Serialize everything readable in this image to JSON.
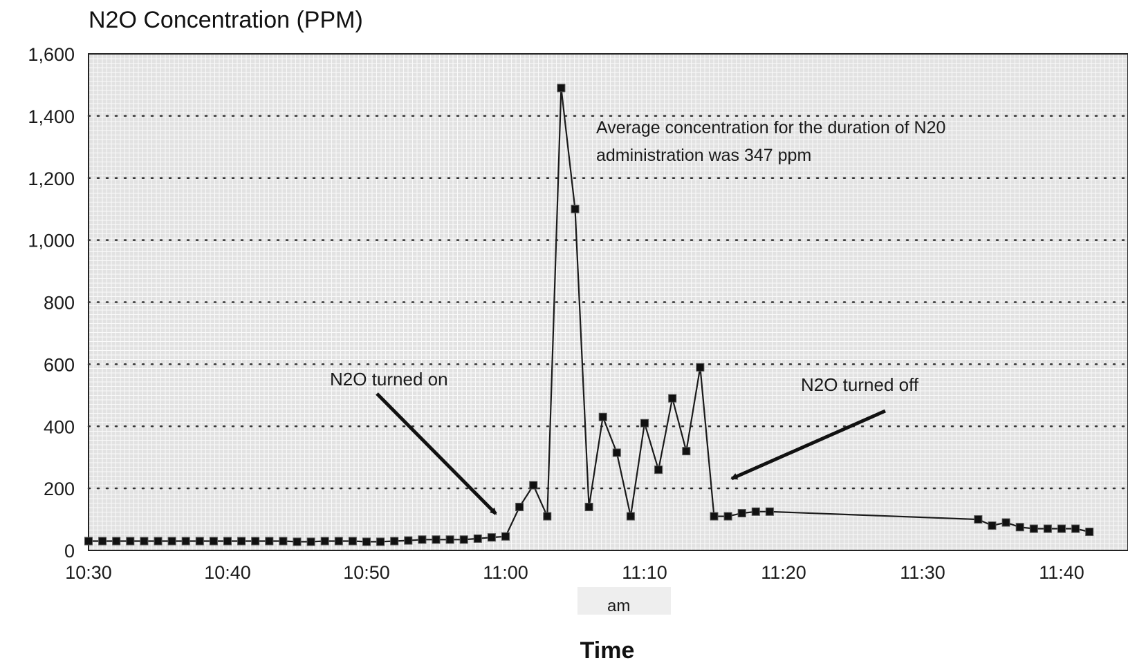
{
  "chart_data": {
    "type": "line",
    "title": "N2O Concentration (PPM)",
    "xlabel": "Time",
    "x_sublabel": "am",
    "ylabel": "",
    "ylim": [
      0,
      1600
    ],
    "xlim": [
      "10:30",
      "11:43"
    ],
    "grid": true,
    "x_ticks": [
      "10:30",
      "10:40",
      "10:50",
      "11:00",
      "11:10",
      "11:20",
      "11:30",
      "11:40"
    ],
    "y_ticks": [
      "0",
      "200",
      "400",
      "600",
      "800",
      "1,000",
      "1,200",
      "1,400",
      "1,600"
    ],
    "series": [
      {
        "x": [
          "10:30",
          "10:31",
          "10:32",
          "10:33",
          "10:34",
          "10:35",
          "10:36",
          "10:37",
          "10:38",
          "10:39",
          "10:40",
          "10:41",
          "10:42",
          "10:43",
          "10:44",
          "10:45",
          "10:46",
          "10:47",
          "10:48",
          "10:49",
          "10:50",
          "10:51",
          "10:52",
          "10:53",
          "10:54",
          "10:55",
          "10:56",
          "10:57",
          "10:58",
          "10:59",
          "11:00",
          "11:01",
          "11:02",
          "11:03",
          "11:04",
          "11:05",
          "11:06",
          "11:07",
          "11:08",
          "11:09",
          "11:10",
          "11:11",
          "11:12",
          "11:13",
          "11:14",
          "11:15",
          "11:16",
          "11:17",
          "11:18",
          "11:19",
          "11:34",
          "11:35",
          "11:36",
          "11:37",
          "11:38",
          "11:39",
          "11:40",
          "11:41",
          "11:42"
        ],
        "y": [
          30,
          30,
          30,
          30,
          30,
          30,
          30,
          30,
          30,
          30,
          30,
          30,
          30,
          30,
          30,
          28,
          28,
          30,
          30,
          30,
          28,
          28,
          30,
          32,
          35,
          35,
          35,
          35,
          38,
          42,
          45,
          140,
          210,
          110,
          1490,
          1100,
          140,
          430,
          315,
          110,
          410,
          260,
          490,
          320,
          590,
          110,
          110,
          120,
          125,
          125,
          100,
          80,
          90,
          75,
          70,
          70,
          70,
          70,
          60
        ]
      }
    ],
    "annotations": [
      {
        "text_lines": [
          "Average concentration for the duration of N20",
          "administration was 347 ppm"
        ]
      },
      {
        "text": "N2O turned on",
        "points_to": "11:00"
      },
      {
        "text": "N2O turned off",
        "points_to": "11:16"
      }
    ],
    "colors": {
      "line": "#1a1a1a",
      "plot_bg": "#e3e3e3",
      "grid_minor": "#ffffff",
      "grid_dotted": "#333333"
    }
  }
}
